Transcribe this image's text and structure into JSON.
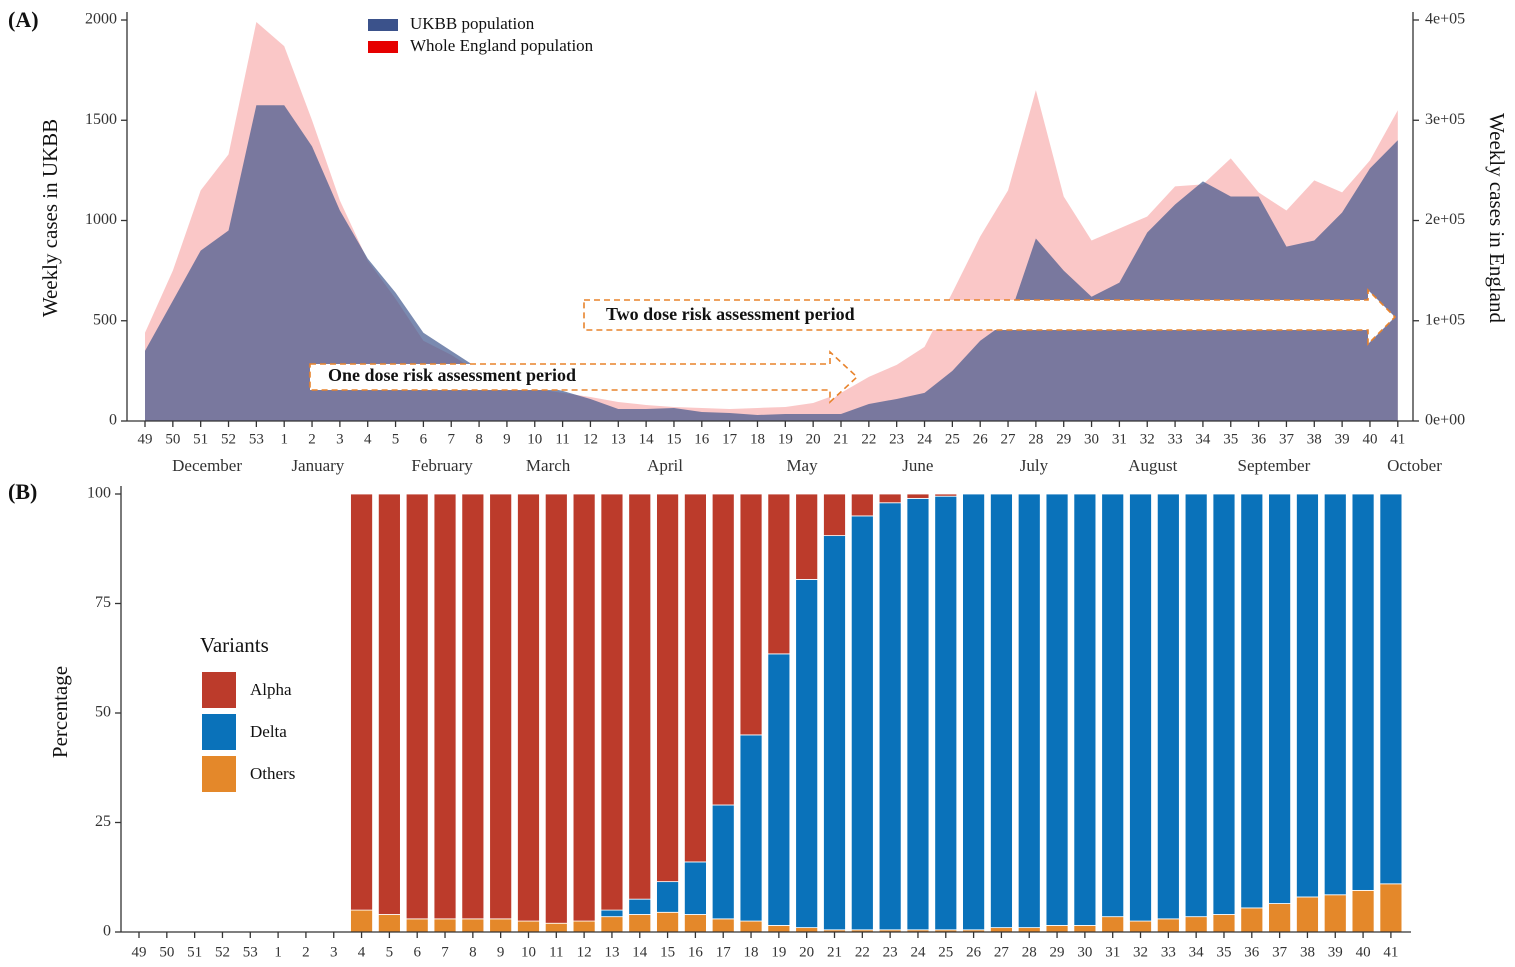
{
  "chart_data": [
    {
      "type": "area",
      "panel_label": "(A)",
      "categories": [
        "49",
        "50",
        "51",
        "52",
        "53",
        "1",
        "2",
        "3",
        "4",
        "5",
        "6",
        "7",
        "8",
        "9",
        "10",
        "11",
        "12",
        "13",
        "14",
        "15",
        "16",
        "17",
        "18",
        "19",
        "20",
        "21",
        "22",
        "23",
        "24",
        "25",
        "26",
        "27",
        "28",
        "29",
        "30",
        "31",
        "32",
        "33",
        "34",
        "35",
        "36",
        "37",
        "38",
        "39",
        "40",
        "41"
      ],
      "month_labels": [
        "December",
        "January",
        "February",
        "March",
        "April",
        "May",
        "June",
        "July",
        "August",
        "September",
        "October"
      ],
      "series": [
        {
          "name": "UKBB population",
          "color": "#3b528b",
          "values": [
            350,
            600,
            850,
            950,
            1575,
            1575,
            1370,
            1050,
            810,
            640,
            440,
            350,
            260,
            220,
            180,
            150,
            110,
            60,
            60,
            65,
            45,
            40,
            30,
            35,
            35,
            35,
            85,
            110,
            140,
            250,
            400,
            500,
            910,
            750,
            620,
            690,
            940,
            1080,
            1195,
            1120,
            1120,
            870,
            900,
            1040,
            1260,
            1400
          ]
        },
        {
          "name": "Whole England population",
          "color": "#e60000",
          "axis": "y2",
          "values": [
            88000,
            150000,
            230000,
            266000,
            398000,
            374000,
            300000,
            220000,
            160000,
            122000,
            80000,
            66000,
            48000,
            38000,
            32000,
            28000,
            24000,
            19000,
            16000,
            14000,
            13000,
            12000,
            13000,
            14000,
            18000,
            28000,
            44000,
            56000,
            74000,
            128000,
            184000,
            230000,
            330000,
            224000,
            180000,
            192000,
            204000,
            234000,
            236000,
            262000,
            228000,
            210000,
            240000,
            228000,
            260000,
            310000
          ]
        }
      ],
      "ylabel": "Weekly cases in UKBB",
      "y2label": "Weekly cases in England",
      "ylim": [
        0,
        2000
      ],
      "yticks": [
        0,
        500,
        1000,
        1500,
        2000
      ],
      "y2lim": [
        0,
        400000
      ],
      "y2ticks": [
        {
          "value": 0,
          "label": "0e+00"
        },
        {
          "value": 100000,
          "label": "1e+05"
        },
        {
          "value": 200000,
          "label": "2e+05"
        },
        {
          "value": 300000,
          "label": "3e+05"
        },
        {
          "value": 400000,
          "label": "4e+05"
        }
      ],
      "annotations": [
        "One dose risk assessment period",
        "Two dose risk assessment period"
      ],
      "legend": "top"
    },
    {
      "type": "bar",
      "stacked": true,
      "panel_label": "(B)",
      "categories": [
        "49",
        "50",
        "51",
        "52",
        "53",
        "1",
        "2",
        "3",
        "4",
        "5",
        "6",
        "7",
        "8",
        "9",
        "10",
        "11",
        "12",
        "13",
        "14",
        "15",
        "16",
        "17",
        "18",
        "19",
        "20",
        "21",
        "22",
        "23",
        "24",
        "25",
        "26",
        "27",
        "28",
        "29",
        "30",
        "31",
        "32",
        "33",
        "34",
        "35",
        "36",
        "37",
        "38",
        "39",
        "40",
        "41"
      ],
      "series": [
        {
          "name": "Alpha",
          "color": "#bc3b2b",
          "values": [
            null,
            null,
            null,
            null,
            null,
            null,
            null,
            null,
            95,
            96,
            97,
            97,
            97,
            97,
            97.5,
            98,
            97.5,
            95,
            92.5,
            88.5,
            84,
            71,
            55,
            36.5,
            19.5,
            9.5,
            5,
            2,
            1,
            0.5,
            0,
            0,
            0,
            0,
            0,
            0,
            0,
            0,
            0,
            0,
            0,
            0,
            0,
            0,
            0,
            0
          ]
        },
        {
          "name": "Delta",
          "color": "#0a72ba",
          "values": [
            null,
            null,
            null,
            null,
            null,
            null,
            null,
            null,
            0,
            0,
            0,
            0,
            0,
            0,
            0,
            0,
            0,
            1.5,
            3.5,
            7,
            12,
            26,
            42.5,
            62,
            79.5,
            90,
            94.5,
            97.5,
            98.5,
            99,
            99.5,
            99,
            99,
            98.5,
            98.5,
            96.5,
            97.5,
            97,
            96.5,
            96,
            94.5,
            93.5,
            92,
            91.5,
            90.5,
            89
          ]
        },
        {
          "name": "Others",
          "color": "#e4882a",
          "values": [
            null,
            null,
            null,
            null,
            null,
            null,
            null,
            null,
            5,
            4,
            3,
            3,
            3,
            3,
            2.5,
            2,
            2.5,
            3.5,
            4,
            4.5,
            4,
            3,
            2.5,
            1.5,
            1,
            0.5,
            0.5,
            0.5,
            0.5,
            0.5,
            0.5,
            1,
            1,
            1.5,
            1.5,
            3.5,
            2.5,
            3,
            3.5,
            4,
            5.5,
            6.5,
            8,
            8.5,
            9.5,
            11
          ]
        }
      ],
      "ylabel": "Percentage",
      "ylim": [
        0,
        100
      ],
      "yticks": [
        0,
        25,
        50,
        75,
        100
      ],
      "legend_title": "Variants",
      "legend": "left"
    }
  ]
}
